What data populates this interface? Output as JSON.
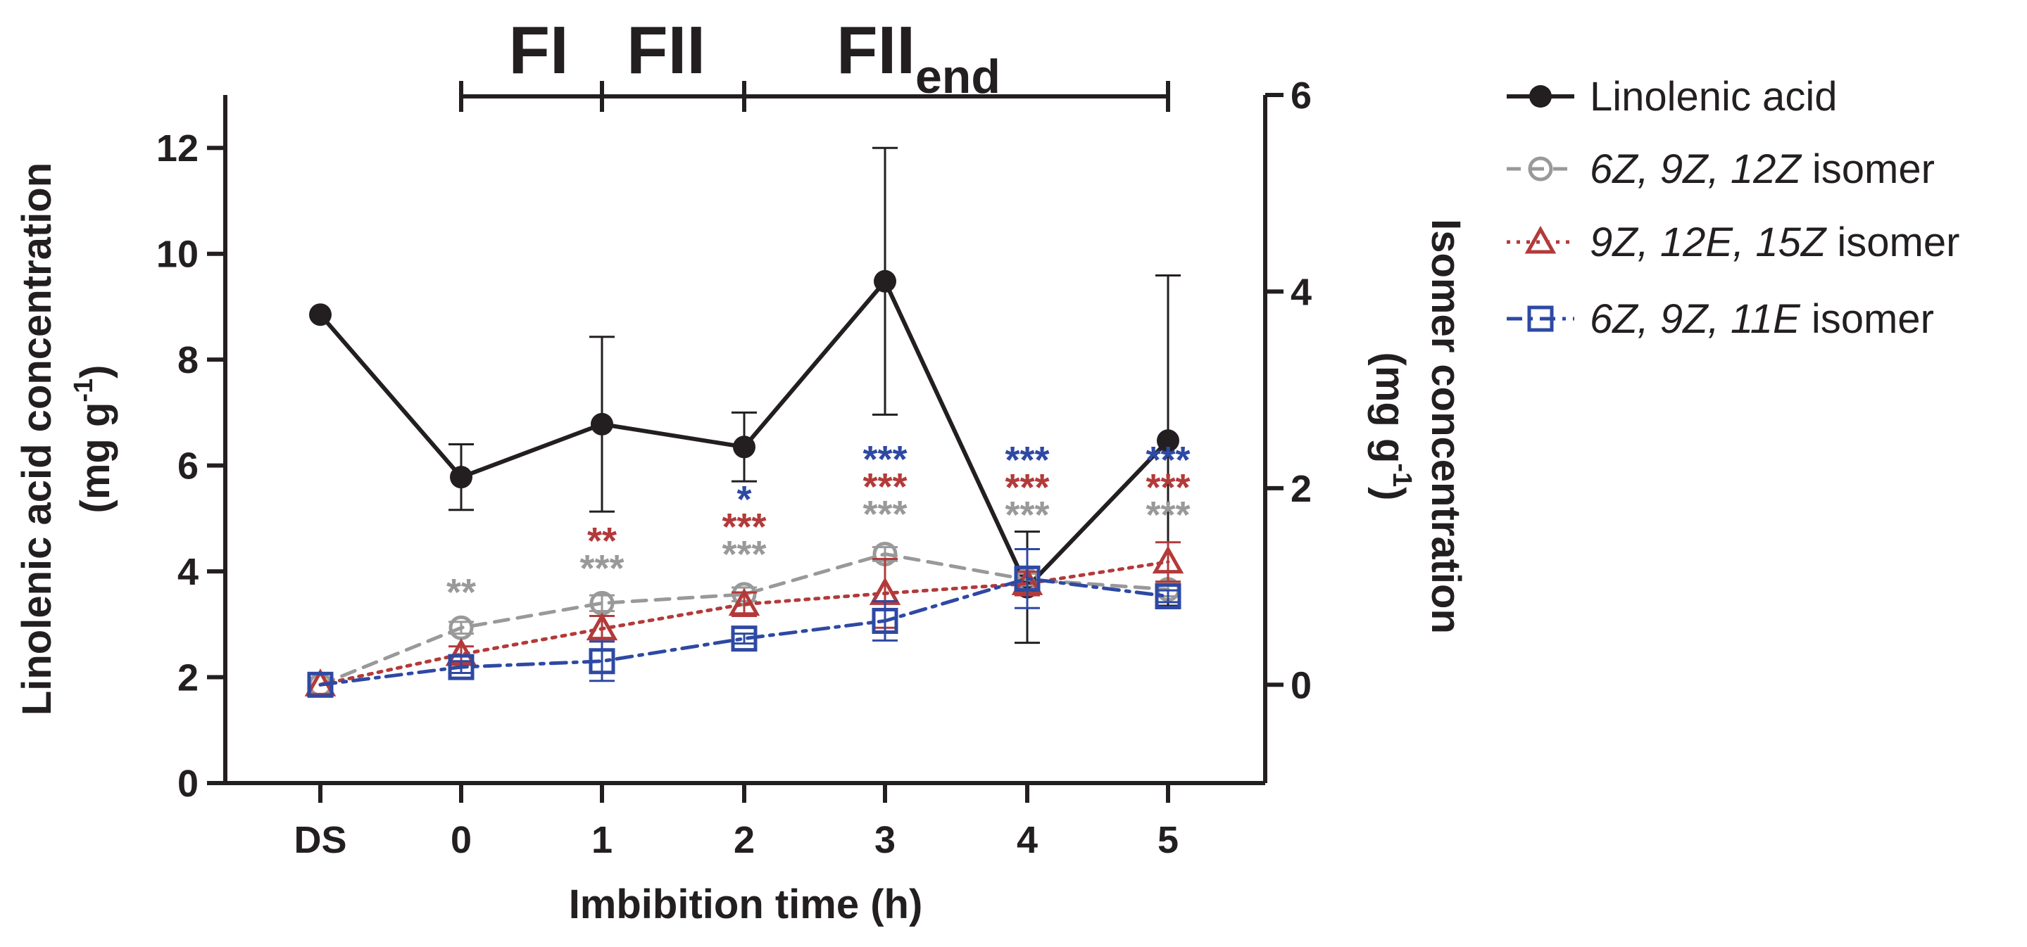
{
  "chart_data": {
    "type": "line",
    "xlabel": "Imbibition time (h)",
    "categories": [
      "DS",
      "0",
      "1",
      "2",
      "3",
      "4",
      "5"
    ],
    "ylabel_left": "Linolenic acid concentration",
    "ylabel_left_unit": "(mg g",
    "ylabel_right": "Isomer concentration",
    "ylabel_right_unit": "(mg g",
    "unit_superscript": "-1",
    "unit_close": ")",
    "ylim_left": [
      0,
      13
    ],
    "yticks_left": [
      0,
      2,
      4,
      6,
      8,
      10,
      12
    ],
    "ylim_right": [
      -1,
      6
    ],
    "yticks_right": [
      0,
      2,
      4,
      6
    ],
    "phases": [
      {
        "label": "FI",
        "sub": "",
        "from": "0",
        "to": "1"
      },
      {
        "label": "FII",
        "sub": "",
        "from": "1",
        "to": "2"
      },
      {
        "label": "FII",
        "sub": "end",
        "from": "2",
        "to": "5"
      }
    ],
    "series": [
      {
        "name": "Linolenic acid",
        "axis": "left",
        "color": "#231f20",
        "marker": "filled-circle",
        "line": "solid",
        "values": [
          8.85,
          5.78,
          6.78,
          6.35,
          9.48,
          3.7,
          6.47
        ],
        "errors": [
          null,
          0.62,
          1.65,
          0.65,
          2.52,
          1.05,
          3.12
        ]
      },
      {
        "name": "6Z, 9Z, 12Z isomer",
        "name_italic": "6Z, 9Z, 12Z",
        "name_plain": " isomer",
        "axis": "right",
        "color": "#999999",
        "marker": "open-circle",
        "line": "dashed",
        "values": [
          0,
          0.58,
          0.83,
          0.92,
          1.33,
          1.07,
          0.97
        ],
        "errors": [
          null,
          0.06,
          0.08,
          0.07,
          0.07,
          0.06,
          0.07
        ],
        "significance": [
          "",
          "**",
          "***",
          "***",
          "***",
          "***",
          "***"
        ]
      },
      {
        "name": "9Z, 12E, 15Z isomer",
        "name_italic": "9Z, 12E, 15Z",
        "name_plain": " isomer",
        "axis": "right",
        "color": "#b33a3a",
        "marker": "open-triangle",
        "line": "dotted",
        "values": [
          0,
          0.31,
          0.57,
          0.82,
          0.93,
          1.03,
          1.25
        ],
        "errors": [
          null,
          0.08,
          0.13,
          0.12,
          0.35,
          0.12,
          0.2
        ],
        "significance": [
          "",
          "",
          "**",
          "***",
          "***",
          "***",
          "***"
        ]
      },
      {
        "name": "6Z, 9Z, 11E isomer",
        "name_italic": "6Z, 9Z, 11E",
        "name_plain": " isomer",
        "axis": "right",
        "color": "#2e49a3",
        "marker": "open-square",
        "line": "dashdot",
        "values": [
          0,
          0.18,
          0.24,
          0.47,
          0.65,
          1.08,
          0.9
        ],
        "errors": [
          null,
          0.06,
          0.2,
          0.05,
          0.2,
          0.3,
          0.06
        ],
        "significance": [
          "",
          "",
          "",
          "*",
          "***",
          "***",
          "***"
        ]
      }
    ],
    "legend_position": "right"
  }
}
